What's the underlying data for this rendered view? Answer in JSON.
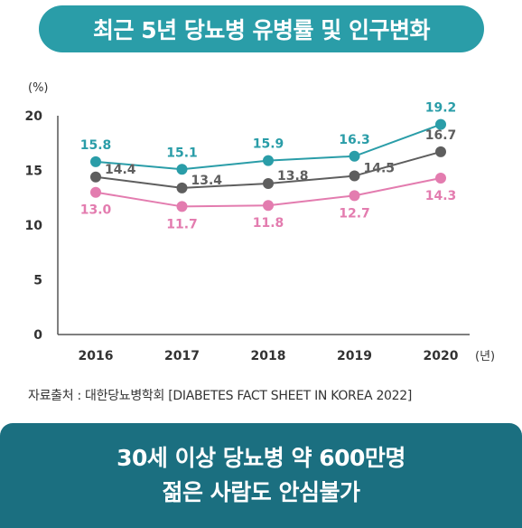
{
  "header": {
    "title": "최근 5년 당뇨병 유병률 및 인구변화"
  },
  "source": "자료출처 : 대한당뇨병학회  [DIABETES FACT SHEET IN KOREA 2022]",
  "footer": {
    "line1": "30세 이상 당뇨병 약 600만명",
    "line2": "젊은 사람도 안심불가"
  },
  "chart_data": {
    "type": "line",
    "title": "",
    "ylabel": "(%)",
    "xlabel": "(년)",
    "x": [
      "2016",
      "2017",
      "2018",
      "2019",
      "2020"
    ],
    "yticks": [
      0,
      5,
      10,
      15,
      20
    ],
    "ylim": [
      0,
      20
    ],
    "grid": false,
    "series": [
      {
        "color": "#2a9da8",
        "values": [
          15.8,
          15.1,
          15.9,
          16.3,
          19.2
        ],
        "labels": [
          "15.8",
          "15.1",
          "15.9",
          "16.3",
          "19.2"
        ]
      },
      {
        "color": "#5e5e5e",
        "values": [
          14.4,
          13.4,
          13.8,
          14.5,
          16.7
        ],
        "labels": [
          "14.4",
          "13.4",
          "13.8",
          "14.5",
          "16.7"
        ]
      },
      {
        "color": "#e37caf",
        "values": [
          13.0,
          11.7,
          11.8,
          12.7,
          14.3
        ],
        "labels": [
          "13.0",
          "11.7",
          "11.8",
          "12.7",
          "14.3"
        ]
      }
    ]
  }
}
